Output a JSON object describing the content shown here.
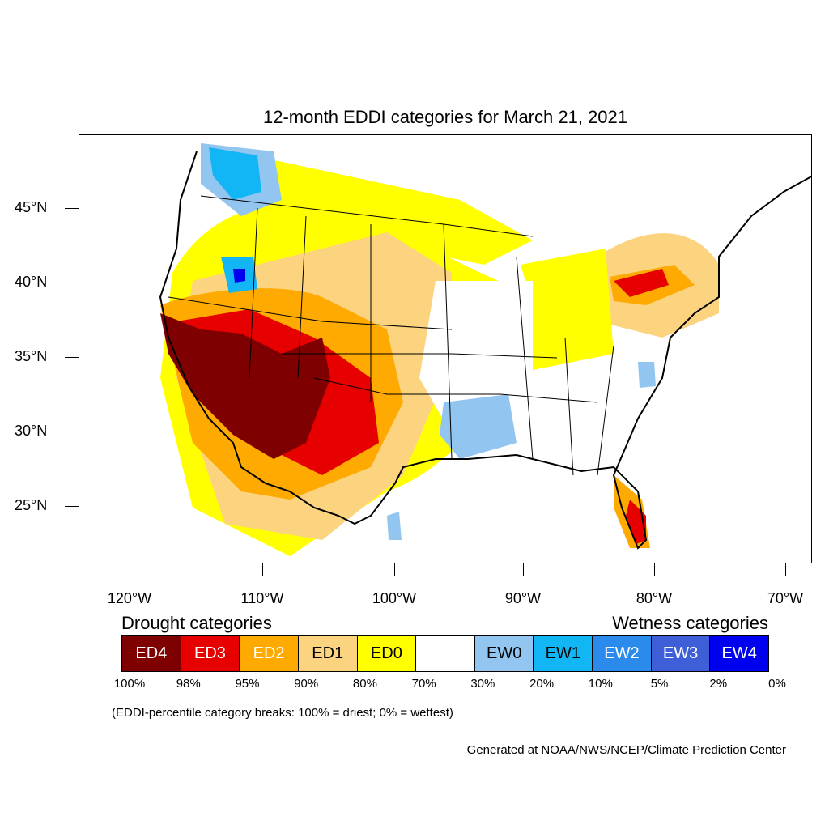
{
  "title": "12-month EDDI categories for March 21, 2021",
  "map": {
    "lat_ticks": [
      {
        "label": "45°N"
      },
      {
        "label": "40°N"
      },
      {
        "label": "35°N"
      },
      {
        "label": "30°N"
      },
      {
        "label": "25°N"
      }
    ],
    "lon_ticks": [
      {
        "label": "120°W"
      },
      {
        "label": "110°W"
      },
      {
        "label": "100°W"
      },
      {
        "label": "90°W"
      },
      {
        "label": "80°W"
      },
      {
        "label": "70°W"
      }
    ]
  },
  "legend": {
    "drought_heading": "Drought categories",
    "wetness_heading": "Wetness categories",
    "categories": [
      {
        "label": "ED4",
        "color": "#7f0000",
        "text_color": "#ffffff"
      },
      {
        "label": "ED3",
        "color": "#e60000",
        "text_color": "#ffffff"
      },
      {
        "label": "ED2",
        "color": "#ffaa00",
        "text_color": "#ffffff"
      },
      {
        "label": "ED1",
        "color": "#fcd37f",
        "text_color": "#000000"
      },
      {
        "label": "ED0",
        "color": "#ffff00",
        "text_color": "#000000"
      },
      {
        "label": "",
        "color": "#ffffff",
        "text_color": "#000000"
      },
      {
        "label": "EW0",
        "color": "#92c5f0",
        "text_color": "#000000"
      },
      {
        "label": "EW1",
        "color": "#12b6f5",
        "text_color": "#000000"
      },
      {
        "label": "EW2",
        "color": "#2a8bed",
        "text_color": "#ffffff"
      },
      {
        "label": "EW3",
        "color": "#3f5fd8",
        "text_color": "#ffffff"
      },
      {
        "label": "EW4",
        "color": "#0000f0",
        "text_color": "#ffffff"
      }
    ],
    "percent_breaks": [
      "100%",
      "98%",
      "95%",
      "90%",
      "80%",
      "70%",
      "30%",
      "20%",
      "10%",
      "5%",
      "2%",
      "0%"
    ]
  },
  "note": "(EDDI-percentile category breaks: 100% = driest; 0% = wettest)",
  "credit": "Generated at NOAA/NWS/NCEP/Climate Prediction Center"
}
